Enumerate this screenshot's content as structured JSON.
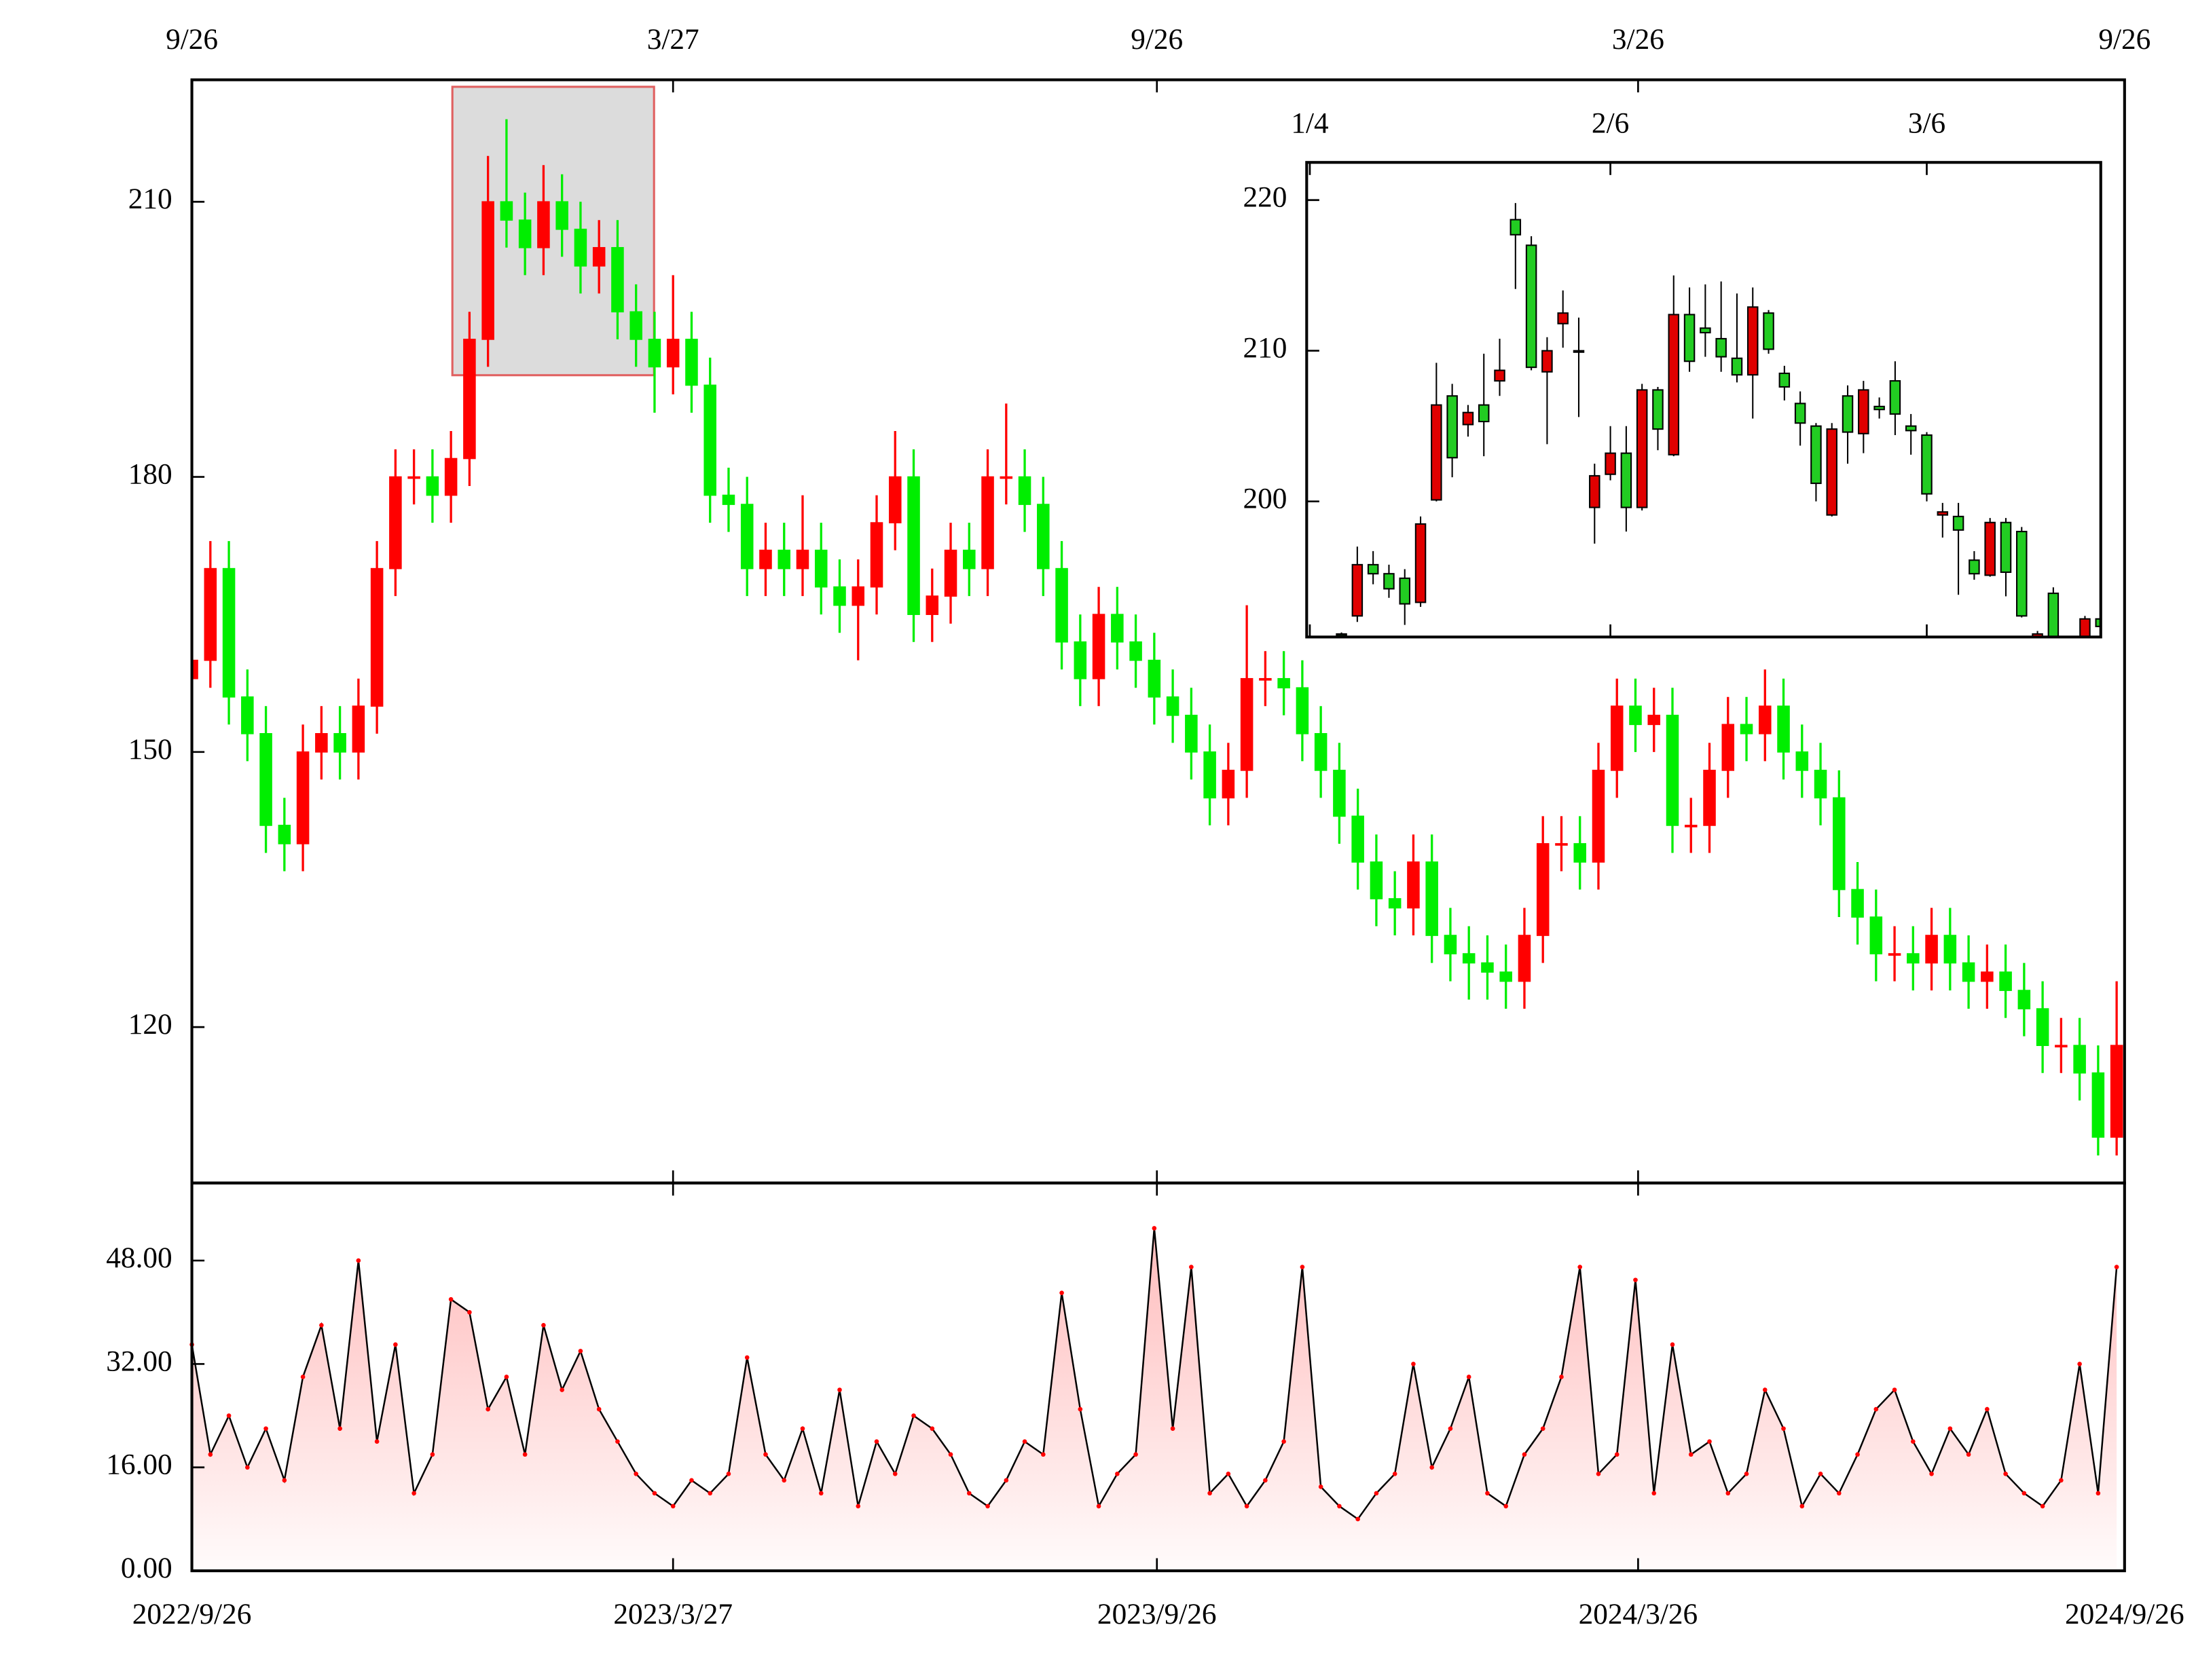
{
  "chart_data": [
    {
      "type": "candlestick",
      "x": [
        "2022-09-26",
        "2022-10-03",
        "2022-10-10",
        "2022-10-17",
        "2022-10-24",
        "2022-10-31",
        "2022-11-07",
        "2022-11-14",
        "2022-11-21",
        "2022-11-28",
        "2022-12-05",
        "2022-12-12",
        "2022-12-19",
        "2022-12-26",
        "2023-01-02",
        "2023-01-09",
        "2023-01-16",
        "2023-01-23",
        "2023-01-30",
        "2023-02-06",
        "2023-02-13",
        "2023-02-20",
        "2023-02-27",
        "2023-03-06",
        "2023-03-13",
        "2023-03-20",
        "2023-03-27",
        "2023-04-03",
        "2023-04-10",
        "2023-04-17",
        "2023-04-24",
        "2023-05-01",
        "2023-05-08",
        "2023-05-15",
        "2023-05-22",
        "2023-05-29",
        "2023-06-05",
        "2023-06-12",
        "2023-06-19",
        "2023-06-26",
        "2023-07-03",
        "2023-07-10",
        "2023-07-17",
        "2023-07-24",
        "2023-07-31",
        "2023-08-07",
        "2023-08-14",
        "2023-08-21",
        "2023-08-28",
        "2023-09-04",
        "2023-09-11",
        "2023-09-18",
        "2023-09-25",
        "2023-10-02",
        "2023-10-09",
        "2023-10-16",
        "2023-10-23",
        "2023-10-30",
        "2023-11-06",
        "2023-11-13",
        "2023-11-20",
        "2023-11-27",
        "2023-12-04",
        "2023-12-11",
        "2023-12-18",
        "2023-12-25",
        "2024-01-01",
        "2024-01-08",
        "2024-01-15",
        "2024-01-22",
        "2024-01-29",
        "2024-02-05",
        "2024-02-12",
        "2024-02-19",
        "2024-02-26",
        "2024-03-04",
        "2024-03-11",
        "2024-03-18",
        "2024-03-25",
        "2024-04-01",
        "2024-04-08",
        "2024-04-15",
        "2024-04-22",
        "2024-04-29",
        "2024-05-06",
        "2024-05-13",
        "2024-05-20",
        "2024-05-27",
        "2024-06-03",
        "2024-06-10",
        "2024-06-17",
        "2024-06-24",
        "2024-07-01",
        "2024-07-08",
        "2024-07-15",
        "2024-07-22",
        "2024-07-29",
        "2024-08-05",
        "2024-08-12",
        "2024-08-19",
        "2024-08-26",
        "2024-09-02",
        "2024-09-09",
        "2024-09-16",
        "2024-09-23"
      ],
      "open": [
        158,
        160,
        170,
        156,
        152,
        142,
        140,
        150,
        152,
        150,
        155,
        170,
        180,
        180,
        178,
        182,
        195,
        210,
        208,
        205,
        210,
        207,
        203,
        205,
        198,
        195,
        192,
        195,
        190,
        178,
        177,
        170,
        172,
        170,
        172,
        168,
        166,
        168,
        175,
        180,
        165,
        167,
        172,
        170,
        180,
        180,
        177,
        170,
        162,
        158,
        165,
        162,
        160,
        156,
        154,
        150,
        145,
        148,
        158,
        158,
        157,
        152,
        148,
        143,
        138,
        134,
        133,
        138,
        130,
        128,
        127,
        126,
        125,
        130,
        140,
        140,
        138,
        148,
        155,
        153,
        154,
        142,
        142,
        148,
        153,
        152,
        155,
        150,
        148,
        145,
        135,
        132,
        128,
        128,
        127,
        130,
        127,
        125,
        126,
        124,
        122,
        118,
        118,
        115,
        108
      ],
      "high": [
        163,
        173,
        173,
        159,
        155,
        145,
        153,
        155,
        155,
        158,
        173,
        183,
        183,
        183,
        185,
        198,
        215,
        219,
        211,
        214,
        213,
        210,
        208,
        208,
        201,
        198,
        202,
        198,
        193,
        181,
        180,
        175,
        175,
        178,
        175,
        171,
        171,
        178,
        185,
        183,
        170,
        175,
        175,
        183,
        188,
        183,
        180,
        173,
        165,
        168,
        168,
        165,
        163,
        159,
        157,
        153,
        151,
        166,
        161,
        161,
        160,
        155,
        151,
        146,
        141,
        137,
        141,
        141,
        133,
        131,
        130,
        129,
        133,
        143,
        143,
        143,
        151,
        158,
        158,
        157,
        157,
        145,
        151,
        156,
        156,
        159,
        158,
        153,
        151,
        148,
        138,
        135,
        131,
        131,
        133,
        133,
        130,
        129,
        129,
        127,
        125,
        121,
        121,
        118,
        125
      ],
      "low": [
        155,
        157,
        153,
        149,
        139,
        137,
        137,
        147,
        147,
        147,
        152,
        167,
        177,
        175,
        175,
        179,
        192,
        205,
        202,
        202,
        204,
        200,
        200,
        195,
        192,
        187,
        189,
        187,
        175,
        174,
        167,
        167,
        167,
        167,
        165,
        163,
        160,
        165,
        172,
        162,
        162,
        164,
        167,
        167,
        177,
        174,
        167,
        159,
        155,
        155,
        159,
        157,
        153,
        151,
        147,
        142,
        142,
        145,
        155,
        154,
        149,
        145,
        140,
        135,
        131,
        130,
        130,
        127,
        125,
        123,
        123,
        122,
        122,
        127,
        137,
        135,
        135,
        145,
        150,
        150,
        139,
        139,
        139,
        145,
        149,
        149,
        147,
        145,
        142,
        132,
        129,
        125,
        125,
        124,
        124,
        124,
        122,
        122,
        121,
        119,
        115,
        115,
        112,
        106,
        106
      ],
      "close": [
        160,
        170,
        156,
        152,
        142,
        140,
        150,
        152,
        150,
        155,
        170,
        180,
        180,
        178,
        182,
        195,
        210,
        208,
        205,
        210,
        207,
        203,
        205,
        198,
        195,
        192,
        195,
        190,
        178,
        177,
        170,
        172,
        170,
        172,
        168,
        166,
        168,
        175,
        180,
        165,
        167,
        172,
        170,
        180,
        180,
        177,
        170,
        162,
        158,
        165,
        162,
        160,
        156,
        154,
        150,
        145,
        148,
        158,
        158,
        157,
        152,
        148,
        143,
        138,
        134,
        133,
        138,
        130,
        128,
        127,
        126,
        125,
        130,
        140,
        140,
        138,
        148,
        155,
        153,
        154,
        142,
        142,
        148,
        153,
        152,
        155,
        150,
        148,
        145,
        135,
        132,
        128,
        128,
        127,
        130,
        127,
        125,
        126,
        124,
        122,
        118,
        118,
        115,
        108,
        118
      ],
      "up_color": "#ff0000",
      "down_color": "#00ee00",
      "xlim": [
        "2022-09-26",
        "2024-09-26"
      ],
      "xticks": [
        {
          "value": "2022-09-26",
          "label": "9/26"
        },
        {
          "value": "2023-03-27",
          "label": "3/27"
        },
        {
          "value": "2023-09-26",
          "label": "9/26"
        },
        {
          "value": "2024-03-26",
          "label": "3/26"
        },
        {
          "value": "2024-09-26",
          "label": "9/26"
        }
      ],
      "ylim": [
        103,
        223.3
      ],
      "yticks": [
        120,
        150,
        180,
        210
      ]
    },
    {
      "type": "line",
      "x": [
        "2022-09-26",
        "2022-10-03",
        "2022-10-10",
        "2022-10-17",
        "2022-10-24",
        "2022-10-31",
        "2022-11-07",
        "2022-11-14",
        "2022-11-21",
        "2022-11-28",
        "2022-12-05",
        "2022-12-12",
        "2022-12-19",
        "2022-12-26",
        "2023-01-02",
        "2023-01-09",
        "2023-01-16",
        "2023-01-23",
        "2023-01-30",
        "2023-02-06",
        "2023-02-13",
        "2023-02-20",
        "2023-02-27",
        "2023-03-06",
        "2023-03-13",
        "2023-03-20",
        "2023-03-27",
        "2023-04-03",
        "2023-04-10",
        "2023-04-17",
        "2023-04-24",
        "2023-05-01",
        "2023-05-08",
        "2023-05-15",
        "2023-05-22",
        "2023-05-29",
        "2023-06-05",
        "2023-06-12",
        "2023-06-19",
        "2023-06-26",
        "2023-07-03",
        "2023-07-10",
        "2023-07-17",
        "2023-07-24",
        "2023-07-31",
        "2023-08-07",
        "2023-08-14",
        "2023-08-21",
        "2023-08-28",
        "2023-09-04",
        "2023-09-11",
        "2023-09-18",
        "2023-09-25",
        "2023-10-02",
        "2023-10-09",
        "2023-10-16",
        "2023-10-23",
        "2023-10-30",
        "2023-11-06",
        "2023-11-13",
        "2023-11-20",
        "2023-11-27",
        "2023-12-04",
        "2023-12-11",
        "2023-12-18",
        "2023-12-25",
        "2024-01-01",
        "2024-01-08",
        "2024-01-15",
        "2024-01-22",
        "2024-01-29",
        "2024-02-05",
        "2024-02-12",
        "2024-02-19",
        "2024-02-26",
        "2024-03-04",
        "2024-03-11",
        "2024-03-18",
        "2024-03-25",
        "2024-04-01",
        "2024-04-08",
        "2024-04-15",
        "2024-04-22",
        "2024-04-29",
        "2024-05-06",
        "2024-05-13",
        "2024-05-20",
        "2024-05-27",
        "2024-06-03",
        "2024-06-10",
        "2024-06-17",
        "2024-06-24",
        "2024-07-01",
        "2024-07-08",
        "2024-07-15",
        "2024-07-22",
        "2024-07-29",
        "2024-08-05",
        "2024-08-12",
        "2024-08-19",
        "2024-08-26",
        "2024-09-02",
        "2024-09-09",
        "2024-09-16",
        "2024-09-23"
      ],
      "values": [
        35,
        18,
        24,
        16,
        22,
        14,
        30,
        38,
        22,
        48,
        20,
        35,
        12,
        18,
        42,
        40,
        25,
        30,
        18,
        38,
        28,
        34,
        25,
        20,
        15,
        12,
        10,
        14,
        12,
        15,
        33,
        18,
        14,
        22,
        12,
        28,
        10,
        20,
        15,
        24,
        22,
        18,
        12,
        10,
        14,
        20,
        18,
        43,
        25,
        10,
        15,
        18,
        53,
        22,
        47,
        12,
        15,
        10,
        14,
        20,
        47,
        13,
        10,
        8,
        12,
        15,
        32,
        16,
        22,
        30,
        12,
        10,
        18,
        22,
        30,
        47,
        15,
        18,
        45,
        12,
        35,
        18,
        20,
        12,
        15,
        28,
        22,
        10,
        15,
        12,
        18,
        25,
        28,
        20,
        15,
        22,
        18,
        25,
        15,
        12,
        10,
        14,
        32,
        12,
        47
      ],
      "color": "#000000",
      "marker_color": "#ff0000",
      "fill_color": "#ffb4b4",
      "xlim": [
        "2022-09-26",
        "2024-09-26"
      ],
      "xticks": [
        {
          "value": "2022-09-26",
          "label": "2022/9/26"
        },
        {
          "value": "2023-03-27",
          "label": "2023/3/27"
        },
        {
          "value": "2023-09-26",
          "label": "2023/9/26"
        },
        {
          "value": "2024-03-26",
          "label": "2024/3/26"
        },
        {
          "value": "2024-09-26",
          "label": "2024/9/26"
        }
      ],
      "ylim": [
        0,
        60
      ],
      "yticks": [
        {
          "value": 0,
          "label": "0.00"
        },
        {
          "value": 16,
          "label": "16.00"
        },
        {
          "value": 32,
          "label": "32.00"
        },
        {
          "value": 48,
          "label": "48.00"
        }
      ]
    },
    {
      "type": "candlestick",
      "open": [
        191.2,
        192.4,
        195.8,
        195.2,
        194.9,
        193.3,
        200.1,
        207.0,
        205.1,
        206.4,
        208.0,
        218.7,
        217.0,
        208.6,
        211.8,
        210.0,
        199.6,
        201.8,
        203.2,
        199.6,
        207.4,
        203.1,
        212.4,
        211.5,
        210.8,
        209.5,
        208.4,
        212.5,
        208.5,
        206.5,
        205.0,
        199.1,
        207.0,
        204.5,
        206.3,
        208.0,
        205.0,
        204.4,
        199.1,
        199.0,
        196.1,
        195.1,
        198.6,
        198.0,
        191.0,
        193.9,
        190.5,
        190.9,
        192.2
      ],
      "high": [
        191.3,
        197.0,
        196.7,
        195.8,
        195.5,
        199.0,
        209.2,
        207.8,
        206.4,
        209.8,
        210.8,
        219.8,
        217.6,
        210.9,
        214.0,
        212.2,
        202.5,
        205.0,
        205.0,
        207.8,
        207.6,
        215.0,
        214.2,
        214.4,
        214.6,
        213.8,
        214.2,
        212.7,
        209.0,
        207.3,
        205.2,
        205.2,
        207.7,
        208.0,
        206.9,
        209.3,
        205.8,
        204.6,
        199.9,
        199.9,
        196.7,
        198.9,
        198.9,
        198.3,
        191.4,
        194.3,
        190.8,
        192.4,
        196.0
      ],
      "low": [
        191.0,
        192.0,
        194.5,
        193.6,
        191.8,
        193.0,
        200.0,
        201.6,
        204.3,
        203.0,
        207.0,
        214.1,
        208.7,
        203.8,
        210.2,
        205.6,
        197.2,
        201.4,
        198.0,
        199.4,
        203.4,
        203.0,
        208.6,
        209.6,
        208.6,
        207.9,
        205.5,
        209.8,
        206.7,
        203.7,
        200.0,
        199.0,
        202.5,
        203.2,
        205.5,
        204.4,
        203.1,
        200.0,
        197.6,
        193.8,
        194.8,
        195.0,
        193.7,
        192.3,
        190.9,
        190.0,
        190.4,
        190.5,
        191.0
      ],
      "close": [
        191.1,
        195.8,
        195.2,
        194.2,
        193.2,
        198.5,
        206.4,
        202.9,
        205.9,
        205.3,
        208.7,
        217.7,
        208.9,
        210.0,
        212.5,
        210.0,
        201.7,
        203.2,
        199.6,
        207.4,
        204.8,
        212.4,
        209.3,
        211.2,
        209.6,
        208.4,
        212.9,
        210.1,
        207.6,
        205.2,
        201.2,
        204.8,
        204.6,
        207.4,
        206.1,
        205.8,
        204.7,
        200.5,
        199.3,
        198.1,
        195.2,
        198.6,
        195.3,
        192.4,
        191.2,
        191.0,
        190.6,
        192.2,
        191.7
      ],
      "up_color": "#e00000",
      "down_color": "#22cc22",
      "xlim": [
        -2.2,
        48
      ],
      "xticks": [
        {
          "value": -2,
          "label": "1/4"
        },
        {
          "value": 17,
          "label": "2/6"
        },
        {
          "value": 37,
          "label": "3/6"
        }
      ],
      "ylim": [
        191,
        222.5
      ],
      "yticks": [
        200,
        210,
        220
      ]
    }
  ]
}
